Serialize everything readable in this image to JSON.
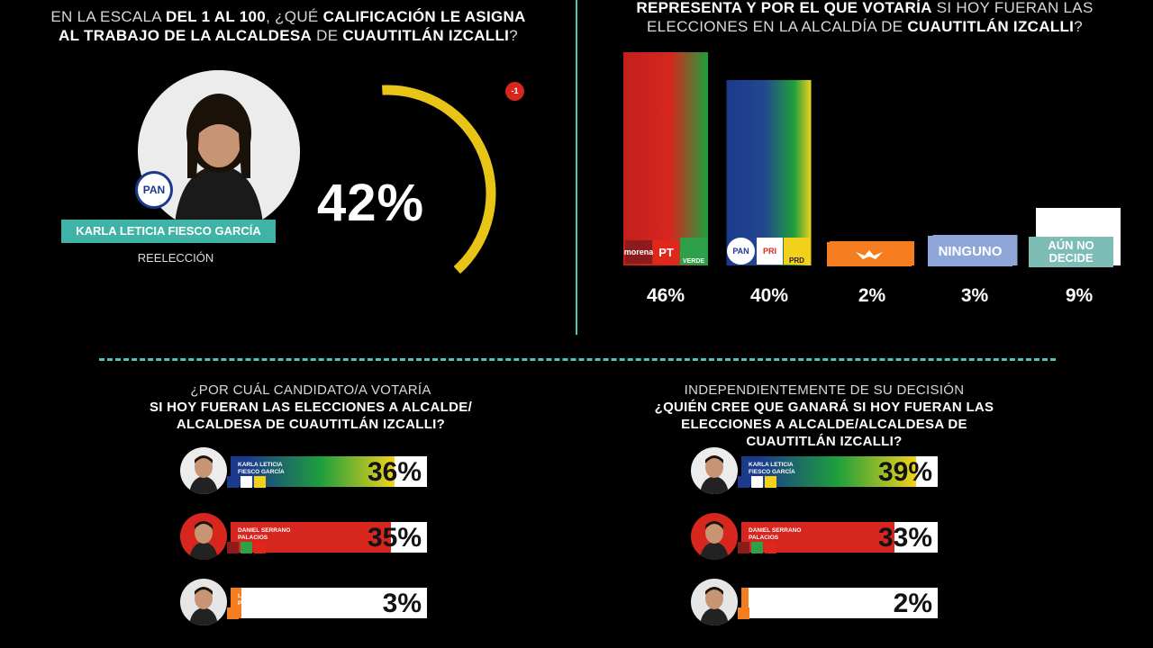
{
  "q1": {
    "line1_pre": "EN LA ESCALA ",
    "line1_b1": "DEL 1 AL 100",
    "line1_mid": ", ¿QUÉ ",
    "line1_b2": "CALIFICACIÓN LE ASIGNA",
    "line2_b1": "AL TRABAJO DE LA ALCALDESA",
    "line2_mid": " DE ",
    "line2_b2": "CUAUTITLÁN IZCALLI",
    "line2_end": "?",
    "candidate_name": "KARLA LETICIA FIESCO GARCÍA",
    "status": "REELECCIÓN",
    "party_badge": "PAN",
    "score": "42%",
    "score_value": 42,
    "change": "-1"
  },
  "q2": {
    "line1_b1": "REPRESENTA Y POR EL QUE VOTARÍA",
    "line1_rest": " SI HOY FUERAN LAS",
    "line2_pre": "ELECCIONES EN LA ALCALDÍA DE ",
    "line2_b": "CUAUTITLÁN IZCALLI",
    "line2_end": "?",
    "chart_data": {
      "type": "bar",
      "categories": [
        "morena / PT / VERDE",
        "PAN / PRI / PRD",
        "MC",
        "NINGUNO",
        "AÚN NO DECIDE"
      ],
      "values": [
        46,
        40,
        2,
        3,
        9
      ],
      "labels": [
        "46%",
        "40%",
        "2%",
        "3%",
        "9%"
      ],
      "ylim": [
        0,
        46
      ]
    },
    "logo_labels": {
      "morena": "morena",
      "pt": "PT",
      "verde": "VERDE",
      "pan": "PAN",
      "pri": "PRI",
      "prd": "PRD",
      "ninguno": "NINGUNO",
      "aun": "AÚN NO",
      "decide": "DECIDE"
    }
  },
  "q3": {
    "line1": "¿POR CUÁL CANDIDATO/A VOTARÍA",
    "line2": "SI HOY FUERAN LAS ELECCIONES A ALCALDE/",
    "line3": "ALCALDESA DE CUAUTITLÁN IZCALLI?",
    "chart_data": {
      "type": "bar",
      "categories": [
        "KARLA LETICIA FIESCO GARCÍA",
        "DANIEL SERRANO PALACIOS",
        "LEOPOLDO GALVÁN PÉREZ"
      ],
      "values": [
        36,
        35,
        3
      ],
      "labels": [
        "36%",
        "35%",
        "3%"
      ]
    },
    "names": [
      [
        "KARLA LETICIA",
        "FIESCO GARCÍA"
      ],
      [
        "DANIEL SERRANO",
        "PALACIOS"
      ],
      [
        "LEOPOLDO GALVÁN",
        "PÉREZ"
      ]
    ]
  },
  "q4": {
    "line1": "INDEPENDIENTEMENTE DE SU DECISIÓN",
    "line2": "¿QUIÉN CREE QUE GANARÁ SI HOY FUERAN LAS",
    "line3": "ELECCIONES A ALCALDE/ALCALDESA DE",
    "line4": "CUAUTITLÁN IZCALLI?",
    "chart_data": {
      "type": "bar",
      "categories": [
        "KARLA LETICIA FIESCO GARCÍA",
        "DANIEL SERRANO PALACIOS",
        "LEOPOLDO GALVÁN PÉREZ"
      ],
      "values": [
        39,
        33,
        2
      ],
      "labels": [
        "39%",
        "33%",
        "2%"
      ]
    },
    "names": [
      [
        "KARLA LETICIA",
        "FIESCO GARCÍA"
      ],
      [
        "DANIEL SERRANO",
        "PALACIOS"
      ],
      [
        "LEOPOLDO GALVAN",
        "PEREZ"
      ]
    ]
  },
  "colors": {
    "teal": "#3fb3a6",
    "gold": "#e8c416",
    "red": "#d7261e",
    "orange": "#f57c1f",
    "pan_blue": "#1b3a8c",
    "ninguno": "#8fa6d8",
    "aun": "#7dbdb5"
  }
}
